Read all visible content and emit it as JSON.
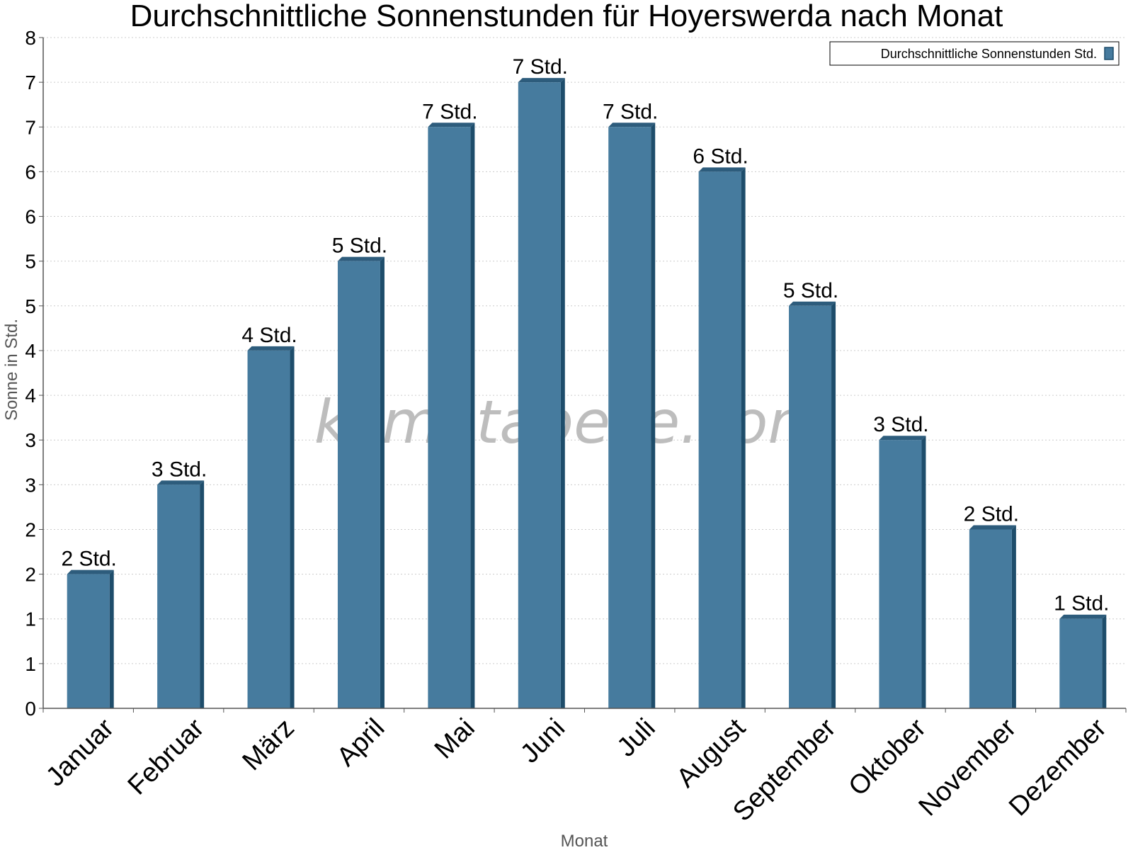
{
  "title": "Durchschnittliche Sonnenstunden für Hoyerswerda nach Monat",
  "watermark": "klimatabelle.com",
  "colors": {
    "bar": "#467b9e",
    "bar_top": "#2d5c7c",
    "bar_side": "#1e4d6b",
    "grid": "#cccccc",
    "axis": "#555555"
  },
  "chart_data": {
    "type": "bar",
    "title": "Durchschnittliche Sonnenstunden für Hoyerswerda nach Monat",
    "xlabel": "Monat",
    "ylabel": "Sonne in Std.",
    "ylim": [
      0,
      7.5
    ],
    "y_ticks": [
      0,
      0.5,
      1,
      1.5,
      2,
      2.5,
      3,
      3.5,
      4,
      4.5,
      5,
      5.5,
      6,
      6.5,
      7,
      7.5
    ],
    "y_tick_labels": [
      "0",
      "1",
      "1",
      "2",
      "2",
      "3",
      "3",
      "4",
      "4",
      "5",
      "5",
      "6",
      "6",
      "7",
      "7",
      "8"
    ],
    "grid": true,
    "legend_position": "top-right",
    "categories": [
      "Januar",
      "Februar",
      "März",
      "April",
      "Mai",
      "Juni",
      "Juli",
      "August",
      "September",
      "Oktober",
      "November",
      "Dezember"
    ],
    "series": [
      {
        "name": "Durchschnittliche Sonnenstunden Std.",
        "values": [
          1.5,
          2.5,
          4,
          5,
          6.5,
          7,
          6.5,
          6,
          4.5,
          3,
          2,
          1
        ],
        "data_labels": [
          "2 Std.",
          "3 Std.",
          "4 Std.",
          "5 Std.",
          "7 Std.",
          "7 Std.",
          "7 Std.",
          "6 Std.",
          "5 Std.",
          "3 Std.",
          "2 Std.",
          "1 Std."
        ]
      }
    ]
  }
}
